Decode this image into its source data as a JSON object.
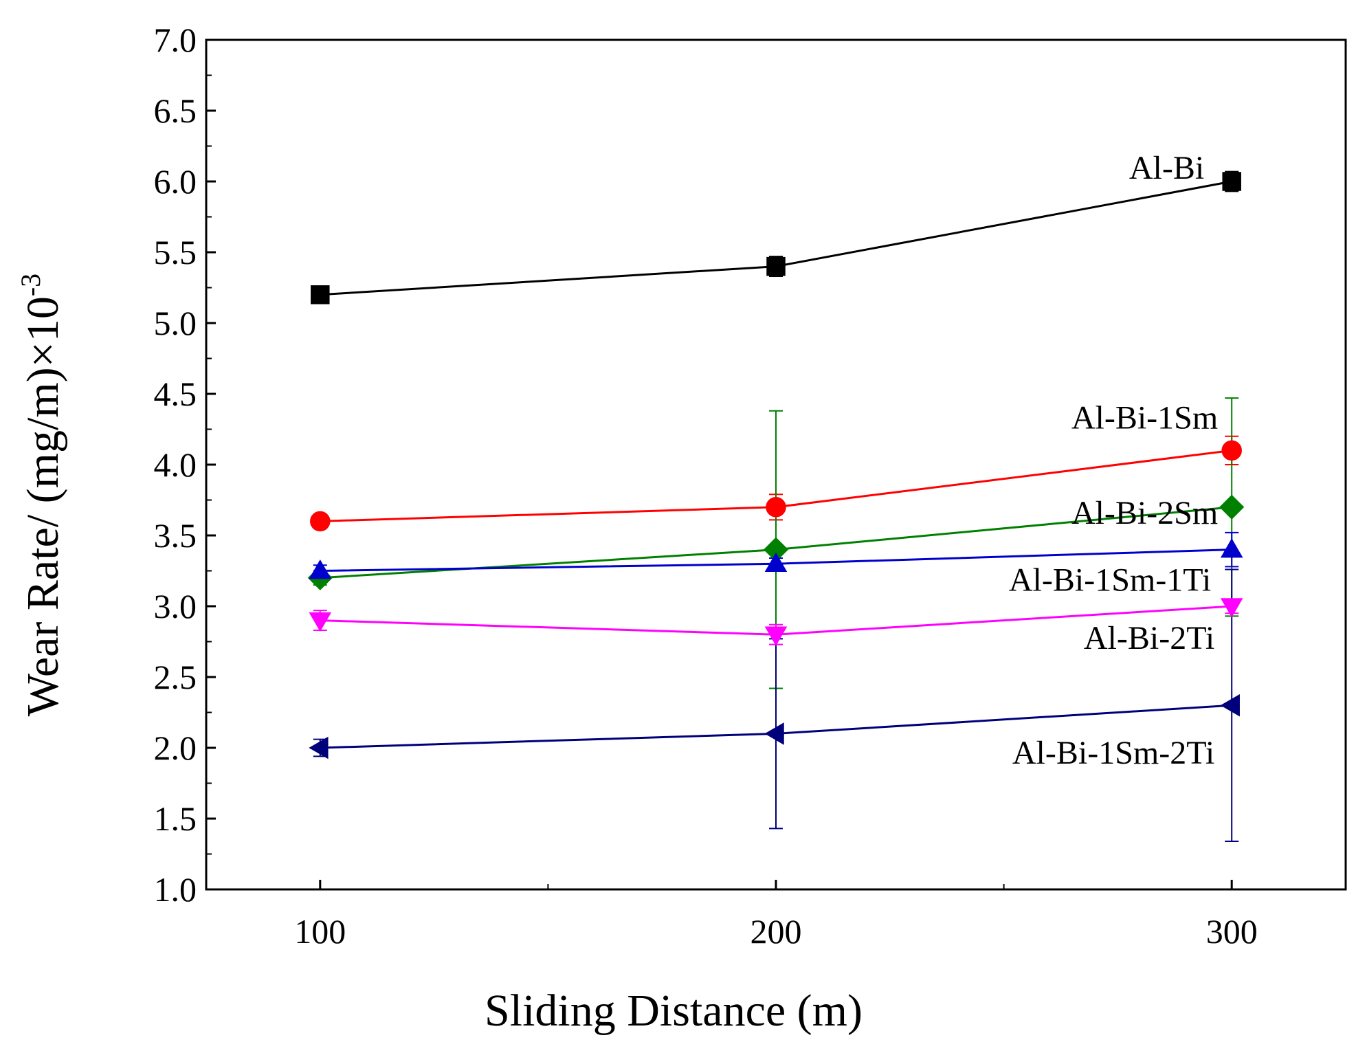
{
  "chart_data": {
    "type": "line",
    "title": "",
    "xlabel": "Sliding Distance (m)",
    "ylabel": "Wear Rate/ (mg/m)×10",
    "ylabel_exponent": "-3",
    "x": [
      100,
      200,
      300
    ],
    "xlim": [
      75,
      325
    ],
    "ylim": [
      1.0,
      7.0
    ],
    "x_ticks": [
      100,
      200,
      300
    ],
    "x_tick_labels": [
      "100",
      "200",
      "300"
    ],
    "y_ticks": [
      1.0,
      1.5,
      2.0,
      2.5,
      3.0,
      3.5,
      4.0,
      4.5,
      5.0,
      5.5,
      6.0,
      6.5,
      7.0
    ],
    "y_tick_labels": [
      "1.0",
      "1.5",
      "2.0",
      "2.5",
      "3.0",
      "3.5",
      "4.0",
      "4.5",
      "5.0",
      "5.5",
      "6.0",
      "6.5",
      "7.0"
    ],
    "grid": false,
    "legend": "inline labels at right end of each series",
    "series": [
      {
        "name": "Al-Bi",
        "color": "#000000",
        "marker": "square",
        "values": [
          5.2,
          5.4,
          6.0
        ],
        "errors": [
          0.06,
          0.07,
          0.07
        ]
      },
      {
        "name": "Al-Bi-1Sm",
        "color": "#ff0000",
        "marker": "circle",
        "values": [
          3.6,
          3.7,
          4.1
        ],
        "errors": [
          0.05,
          0.09,
          0.1
        ]
      },
      {
        "name": "Al-Bi-2Sm",
        "color": "#008000",
        "marker": "diamond",
        "values": [
          3.2,
          3.4,
          3.7
        ],
        "errors": [
          0.05,
          0.98,
          0.77
        ]
      },
      {
        "name": "Al-Bi-1Sm-1Ti",
        "color": "#0000cc",
        "marker": "triangle-up",
        "values": [
          3.25,
          3.3,
          3.4
        ],
        "errors": [
          0.04,
          0.04,
          0.12
        ]
      },
      {
        "name": "Al-Bi-2Ti",
        "color": "#ff00ff",
        "marker": "triangle-down",
        "values": [
          2.9,
          2.8,
          3.0
        ],
        "errors": [
          0.07,
          0.07,
          0.05
        ]
      },
      {
        "name": "Al-Bi-1Sm-2Ti",
        "color": "#00007a",
        "marker": "triangle-left",
        "values": [
          2.0,
          2.1,
          2.3
        ],
        "errors": [
          0.06,
          0.67,
          0.96
        ]
      }
    ]
  }
}
